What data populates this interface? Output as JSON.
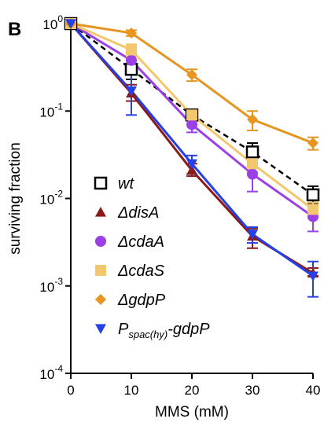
{
  "panel_label": "B",
  "chart_data": {
    "type": "line",
    "xlabel": "MMS (mM)",
    "ylabel": "surviving fraction",
    "x": [
      0,
      10,
      20,
      30,
      40
    ],
    "xlim": [
      0,
      40
    ],
    "ylim": [
      0.0001,
      1
    ],
    "yscale": "log",
    "x_ticks": [
      "0",
      "10",
      "20",
      "30",
      "40"
    ],
    "y_ticks": [
      {
        "value": 1,
        "base": "10",
        "exp": "0"
      },
      {
        "value": 0.1,
        "base": "10",
        "exp": "-1"
      },
      {
        "value": 0.01,
        "base": "10",
        "exp": "-2"
      },
      {
        "value": 0.001,
        "base": "10",
        "exp": "-3"
      },
      {
        "value": 0.0001,
        "base": "10",
        "exp": "-4"
      }
    ],
    "grid": false,
    "legend_position": "bottom-left",
    "series": [
      {
        "name": "wt",
        "key": "wt",
        "color": "#000000",
        "marker": "open-square",
        "dashed": true,
        "values": [
          1,
          0.3,
          0.09,
          0.034,
          0.011
        ],
        "err_low": [
          1,
          0.23,
          0.078,
          0.027,
          0.0088
        ],
        "err_high": [
          1,
          0.38,
          0.104,
          0.043,
          0.0138
        ]
      },
      {
        "name": "ΔdisA",
        "key": "disA",
        "color": "#8b1a1a",
        "marker": "triangle-up",
        "dashed": false,
        "values": [
          1,
          0.16,
          0.021,
          0.0037,
          0.0014
        ],
        "err_low": [
          1,
          0.13,
          0.018,
          0.0027,
          0.0013
        ],
        "err_high": [
          1,
          0.2,
          0.025,
          0.0045,
          0.0016
        ]
      },
      {
        "name": "ΔcdaA",
        "key": "cdaA",
        "color": "#9b3fe6",
        "marker": "circle",
        "dashed": false,
        "values": [
          1,
          0.38,
          0.07,
          0.019,
          0.0062
        ],
        "err_low": [
          1,
          0.31,
          0.057,
          0.012,
          0.0042
        ],
        "err_high": [
          1,
          0.45,
          0.085,
          0.026,
          0.0085
        ]
      },
      {
        "name": "ΔcdaS",
        "key": "cdaS",
        "color": "#f2c76e",
        "marker": "square",
        "dashed": false,
        "values": [
          1,
          0.5,
          0.09,
          0.025,
          0.0075
        ],
        "err_low": [
          1,
          0.42,
          0.08,
          0.02,
          0.006
        ],
        "err_high": [
          1,
          0.58,
          0.1,
          0.03,
          0.009
        ]
      },
      {
        "name": "ΔgdpP",
        "key": "gdpP",
        "color": "#e69520",
        "marker": "diamond",
        "dashed": false,
        "values": [
          1,
          0.78,
          0.26,
          0.08,
          0.043
        ],
        "err_low": [
          1,
          0.72,
          0.22,
          0.06,
          0.036
        ],
        "err_high": [
          1,
          0.84,
          0.3,
          0.1,
          0.05
        ]
      },
      {
        "name_main": "P",
        "name_sub": "spac(hy)",
        "name_tail": "-gdpP",
        "key": "spac",
        "color": "#2540e6",
        "marker": "triangle-down",
        "dashed": false,
        "values": [
          1,
          0.17,
          0.025,
          0.0039,
          0.0013
        ],
        "err_low": [
          1,
          0.09,
          0.019,
          0.0031,
          0.00075
        ],
        "err_high": [
          1,
          0.26,
          0.031,
          0.0047,
          0.0019
        ]
      }
    ]
  }
}
